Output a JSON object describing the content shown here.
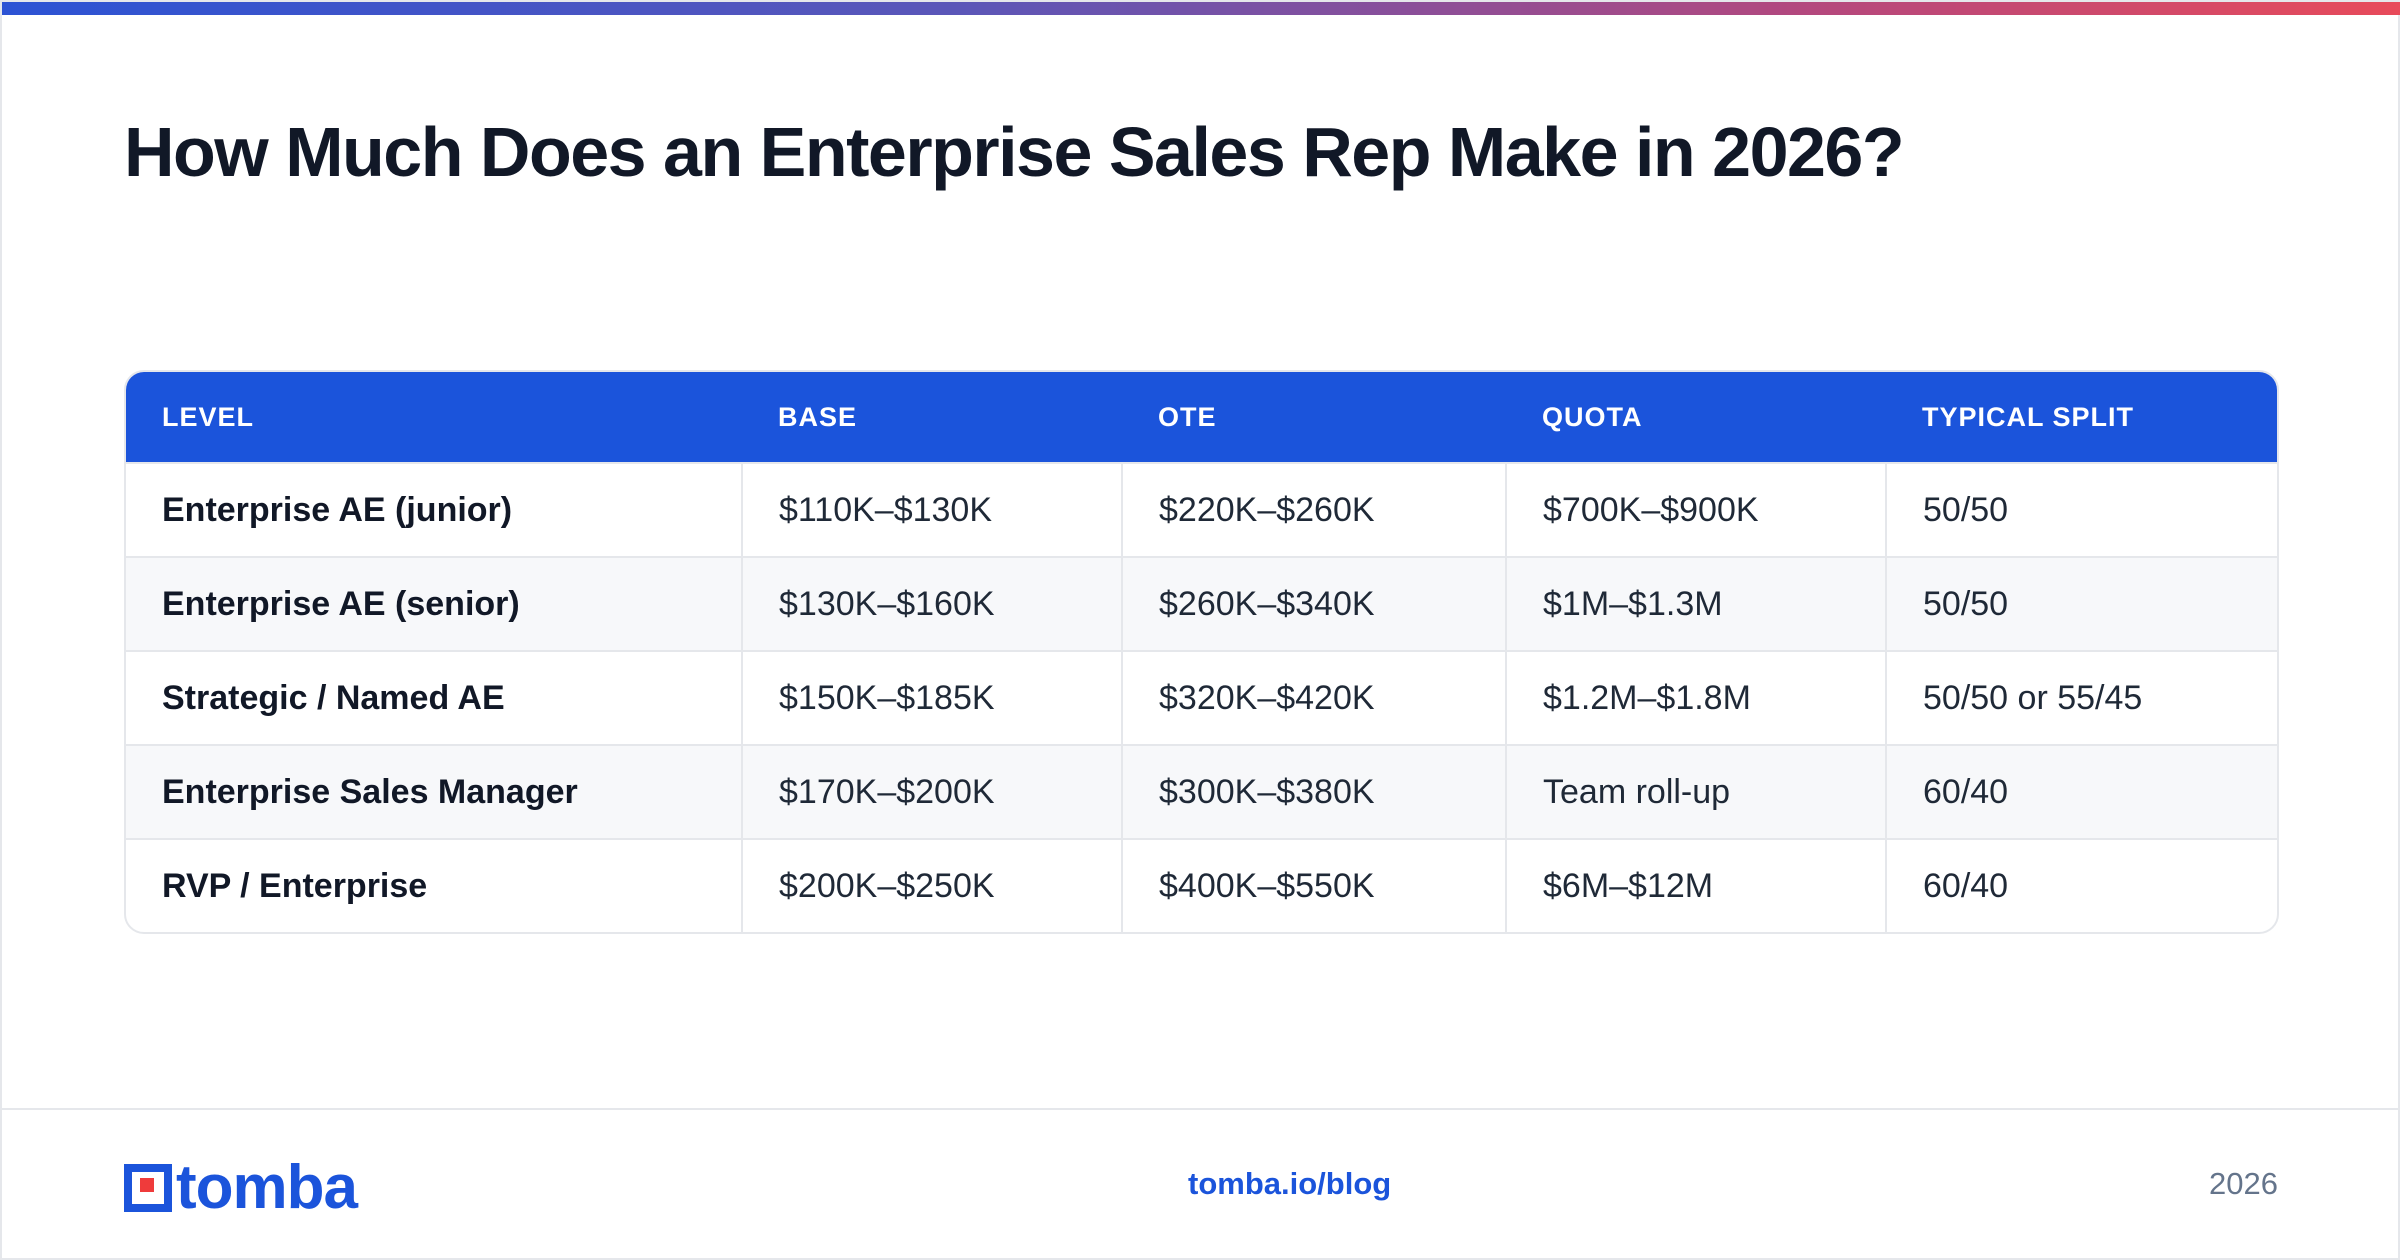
{
  "title": "How Much Does an Enterprise Sales Rep Make in 2026?",
  "colors": {
    "accent": "#1b54db",
    "logo_dot": "#ef3b3b",
    "gradient_start": "#2c53d4",
    "gradient_end": "#e84a5a"
  },
  "table": {
    "headers": [
      "LEVEL",
      "BASE",
      "OTE",
      "QUOTA",
      "TYPICAL SPLIT"
    ],
    "rows": [
      [
        "Enterprise AE (junior)",
        "$110K–$130K",
        "$220K–$260K",
        "$700K–$900K",
        "50/50"
      ],
      [
        "Enterprise AE (senior)",
        "$130K–$160K",
        "$260K–$340K",
        "$1M–$1.3M",
        "50/50"
      ],
      [
        "Strategic / Named AE",
        "$150K–$185K",
        "$320K–$420K",
        "$1.2M–$1.8M",
        "50/50 or 55/45"
      ],
      [
        "Enterprise Sales Manager",
        "$170K–$200K",
        "$300K–$380K",
        "Team roll-up",
        "60/40"
      ],
      [
        "RVP / Enterprise",
        "$200K–$250K",
        "$400K–$550K",
        "$6M–$12M",
        "60/40"
      ]
    ]
  },
  "footer": {
    "logo_text": "tomba",
    "url": "tomba.io/blog",
    "year": "2026"
  }
}
